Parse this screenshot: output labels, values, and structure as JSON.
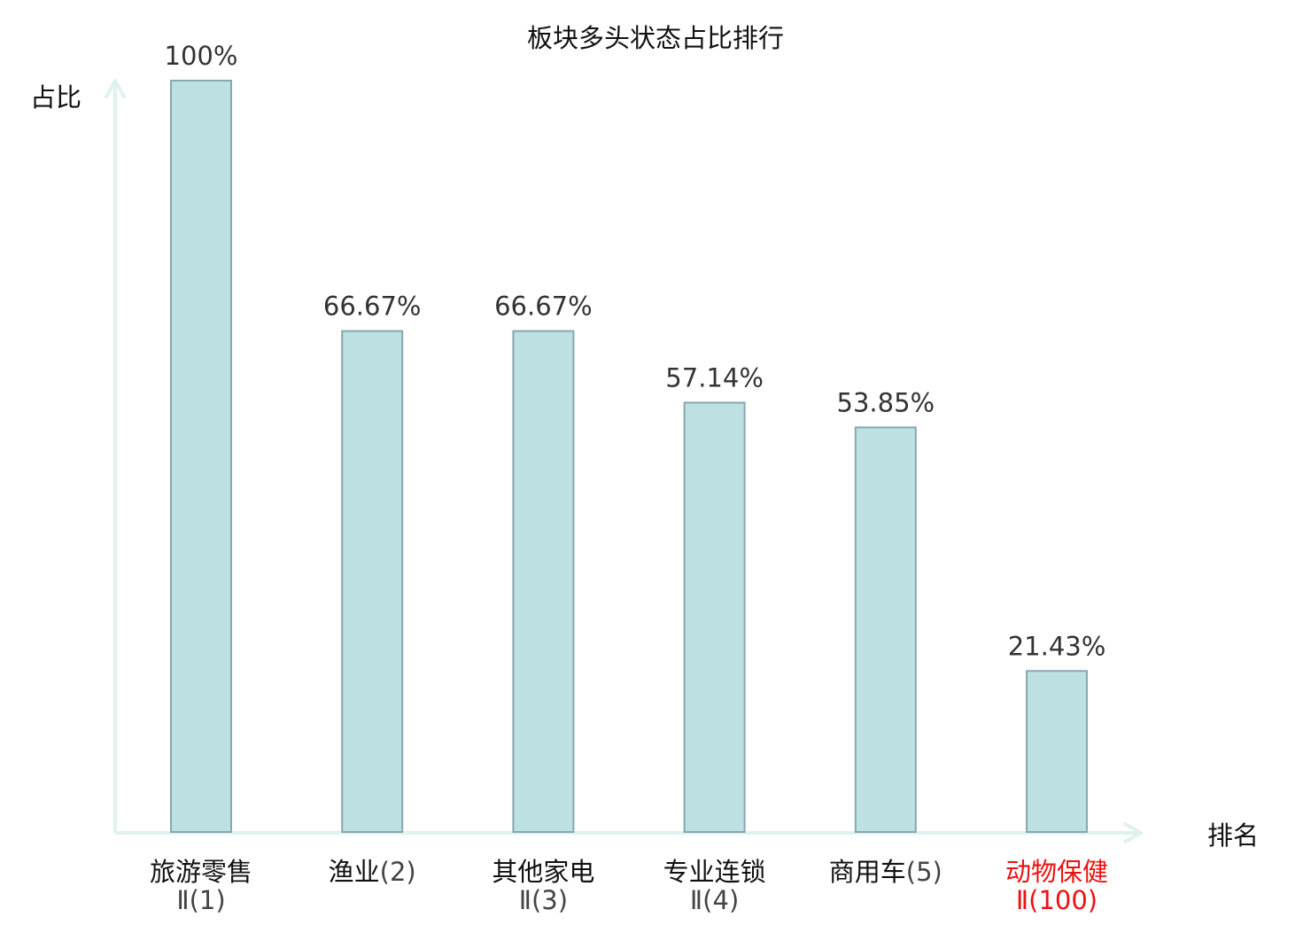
{
  "chart_data": {
    "type": "bar",
    "title": "板块多头状态占比排行",
    "ylabel": "占比",
    "xlabel": "排名",
    "ylim": [
      0,
      100
    ],
    "grid": false,
    "categories": [
      {
        "name": "旅游零售",
        "rank": "Ⅱ(1)",
        "highlight": false
      },
      {
        "name": "渔业",
        "rank": "(2)",
        "highlight": false
      },
      {
        "name": "其他家电",
        "rank": "Ⅱ(3)",
        "highlight": false
      },
      {
        "name": "专业连锁",
        "rank": "Ⅱ(4)",
        "highlight": false
      },
      {
        "name": "商用车",
        "rank": "(5)",
        "highlight": false
      },
      {
        "name": "动物保健",
        "rank": "Ⅱ(100)",
        "highlight": true
      }
    ],
    "values": [
      100,
      66.67,
      66.67,
      57.14,
      53.85,
      21.43
    ],
    "value_labels": [
      "100%",
      "66.67%",
      "66.67%",
      "57.14%",
      "53.85%",
      "21.43%"
    ]
  },
  "colors": {
    "bar_fill": "#bde0e3",
    "bar_stroke": "#86a9ad",
    "axis": "#dff2ef",
    "text": "#111111",
    "value_text": "#333333",
    "rank_text": "#444444",
    "highlight": "#ee1111"
  }
}
